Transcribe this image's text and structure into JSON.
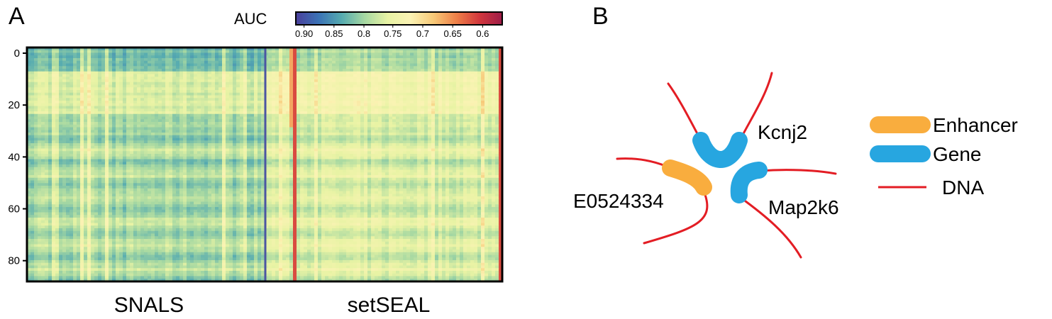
{
  "panels": {
    "a": "A",
    "b": "B"
  },
  "chart_data": {
    "type": "heatmap",
    "title": "",
    "colorbar": {
      "label": "AUC",
      "ticks": [
        "0.90",
        "0.85",
        "0.8",
        "0.75",
        "0.7",
        "0.65",
        "0.6"
      ],
      "colors": [
        "#4a3f9b",
        "#3b73b6",
        "#56abb0",
        "#a6d8a2",
        "#e8f3a4",
        "#fbf3b4",
        "#f7c978",
        "#ee8048",
        "#d2383d",
        "#9e1c48"
      ]
    },
    "y_ticks": [
      "0",
      "20",
      "40",
      "60",
      "80"
    ],
    "ylim": [
      0,
      88
    ],
    "groups": [
      "SNALS",
      "setSEAL"
    ]
  },
  "diagram": {
    "genes": {
      "kcnj2": "Kcnj2",
      "map2k6": "Map2k6",
      "enhancer": "E0524334"
    },
    "legend": [
      {
        "label": "Enhancer",
        "color": "#f9ad3e"
      },
      {
        "label": "Gene",
        "color": "#27a6e0"
      },
      {
        "label": "DNA",
        "color": "#e31d24"
      }
    ]
  }
}
